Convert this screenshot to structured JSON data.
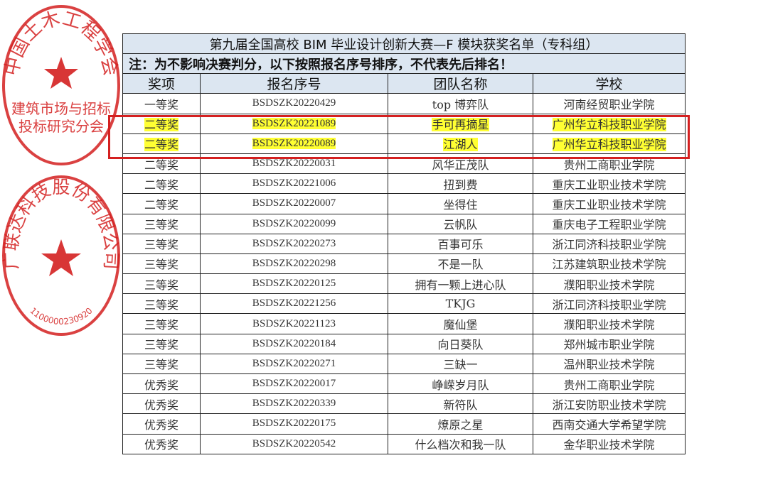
{
  "title": "第九届全国高校 BIM 毕业设计创新大赛—F 模块获奖名单（专科组）",
  "note": "注：为不影响决赛判分，以下按照报名序号排序，不代表先后排名！",
  "headers": [
    "奖项",
    "报名序号",
    "团队名称",
    "学校"
  ],
  "rows": [
    {
      "award": "一等奖",
      "id": "BSDSZK20220429",
      "team": "top 博弈队",
      "school": "河南经贸职业学院",
      "highlighted": false
    },
    {
      "award": "二等奖",
      "id": "BSDSZK20221089",
      "team": "手可再摘星",
      "school": "广州华立科技职业学院",
      "highlighted": true
    },
    {
      "award": "二等奖",
      "id": "BSDSZK20220089",
      "team": "江湖人",
      "school": "广州华立科技职业学院",
      "highlighted": true
    },
    {
      "award": "二等奖",
      "id": "BSDSZK20220031",
      "team": "风华正茂队",
      "school": "贵州工商职业学院",
      "highlighted": false
    },
    {
      "award": "二等奖",
      "id": "BSDSZK20221006",
      "team": "扭到费",
      "school": "重庆工业职业技术学院",
      "highlighted": false
    },
    {
      "award": "二等奖",
      "id": "BSDSZK20220007",
      "team": "坐得住",
      "school": "重庆工业职业技术学院",
      "highlighted": false
    },
    {
      "award": "三等奖",
      "id": "BSDSZK20220099",
      "team": "云帆队",
      "school": "重庆电子工程职业学院",
      "highlighted": false
    },
    {
      "award": "三等奖",
      "id": "BSDSZK20220273",
      "team": "百事可乐",
      "school": "浙江同济科技职业学院",
      "highlighted": false
    },
    {
      "award": "三等奖",
      "id": "BSDSZK20220298",
      "team": "不是一队",
      "school": "江苏建筑职业技术学院",
      "highlighted": false
    },
    {
      "award": "三等奖",
      "id": "BSDSZK20220125",
      "team": "拥有一颗上进心队",
      "school": "濮阳职业技术学院",
      "highlighted": false
    },
    {
      "award": "三等奖",
      "id": "BSDSZK20221256",
      "team": "TKJG",
      "school": "浙江同济科技职业学院",
      "highlighted": false
    },
    {
      "award": "三等奖",
      "id": "BSDSZK20221123",
      "team": "魔仙堡",
      "school": "濮阳职业技术学院",
      "highlighted": false
    },
    {
      "award": "三等奖",
      "id": "BSDSZK20220184",
      "team": "向日葵队",
      "school": "郑州城市职业学院",
      "highlighted": false
    },
    {
      "award": "三等奖",
      "id": "BSDSZK20220271",
      "team": "三缺一",
      "school": "温州职业技术学院",
      "highlighted": false
    },
    {
      "award": "优秀奖",
      "id": "BSDSZK20220017",
      "team": "峥嵘岁月队",
      "school": "贵州工商职业学院",
      "highlighted": false
    },
    {
      "award": "优秀奖",
      "id": "BSDSZK20220339",
      "team": "新符队",
      "school": "浙江安防职业技术学院",
      "highlighted": false
    },
    {
      "award": "优秀奖",
      "id": "BSDSZK20220175",
      "team": "燎原之星",
      "school": "西南交通大学希望学院",
      "highlighted": false
    },
    {
      "award": "优秀奖",
      "id": "BSDSZK20220542",
      "team": "什么档次和我一队",
      "school": "金华职业技术学院",
      "highlighted": false
    }
  ],
  "stamps": [
    {
      "outer": "中国土木工程学会",
      "inner1": "建筑市场与招标",
      "inner2": "投标研究分会",
      "color": "#d42020"
    },
    {
      "outer": "广联达科技股份有限公司",
      "number": "1100000230920",
      "color": "#d42020"
    }
  ],
  "colors": {
    "header_bg": "#dce6f1",
    "highlight": "#ffff33",
    "redbox": "#d42020"
  }
}
